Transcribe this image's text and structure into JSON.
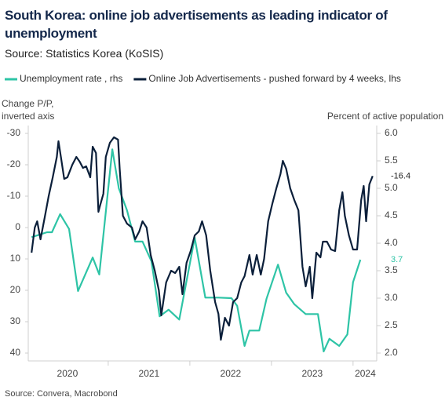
{
  "chart_data": {
    "type": "line",
    "title": "South Korea: online job advertisements as leading indicator of unemployment",
    "subtitle": "Source: Statistics Korea (KoSIS)",
    "ylabel": [
      "Change P/P,",
      "inverted axis"
    ],
    "y2label": "Percent of active population",
    "source": "Source: Convera, Macrobond",
    "xlim": [
      2020.02,
      2024.29
    ],
    "xticks": [
      {
        "value": 2020.5,
        "label": "2020"
      },
      {
        "value": 2021.5,
        "label": "2021"
      },
      {
        "value": 2022.5,
        "label": "2022"
      },
      {
        "value": 2023.5,
        "label": "2023"
      },
      {
        "value": 2024.15,
        "label": "2024"
      }
    ],
    "xtick_marks": [
      2021,
      2022,
      2023,
      2024
    ],
    "ylim": [
      -30,
      40
    ],
    "y_inverted": true,
    "yticks": [
      -30,
      -20,
      -10,
      0,
      10,
      20,
      30,
      40
    ],
    "y2lim": [
      2,
      6
    ],
    "y2ticks": [
      {
        "value": 2,
        "label": "2.0"
      },
      {
        "value": 2.5,
        "label": "2.5"
      },
      {
        "value": 3,
        "label": "3.0"
      },
      {
        "value": 3.5,
        "label": "3.5"
      },
      {
        "value": 4,
        "label": "4.0"
      },
      {
        "value": 4.5,
        "label": "4.5"
      },
      {
        "value": 5,
        "label": "5.0"
      },
      {
        "value": 5.5,
        "label": "5.5"
      },
      {
        "value": 6,
        "label": "6.0"
      }
    ],
    "series": [
      {
        "name": "Unemployment rate , rhs",
        "color": "#2ec4a6",
        "axis": "y2",
        "x": [
          2020.06,
          2020.25,
          2020.31,
          2020.41,
          2020.52,
          2020.63,
          2020.81,
          2020.89,
          2021.05,
          2021.13,
          2021.23,
          2021.33,
          2021.42,
          2021.53,
          2021.63,
          2021.74,
          2021.87,
          2022.06,
          2022.19,
          2022.35,
          2022.51,
          2022.58,
          2022.67,
          2022.73,
          2022.85,
          2022.94,
          2023.08,
          2023.18,
          2023.28,
          2023.42,
          2023.57,
          2023.64,
          2023.71,
          2023.83,
          2023.93,
          2024.0,
          2024.09
        ],
        "values": [
          4.11,
          4.2,
          4.2,
          4.53,
          4.26,
          3.13,
          3.74,
          3.43,
          5.71,
          5.0,
          4.6,
          4.03,
          4.03,
          3.67,
          2.67,
          2.79,
          2.61,
          4.1,
          3.01,
          3.01,
          3.0,
          2.86,
          2.13,
          2.41,
          2.41,
          2.99,
          3.61,
          3.1,
          2.89,
          2.71,
          2.71,
          2.03,
          2.26,
          2.13,
          2.34,
          3.29,
          3.7
        ]
      },
      {
        "name": "Online Job Advertisements - pushed forward by 4 weeks, lhs",
        "color": "#0b1f3a",
        "x": [
          2020.06,
          2020.1,
          2020.13,
          2020.17,
          2020.22,
          2020.27,
          2020.32,
          2020.37,
          2020.39,
          2020.42,
          2020.46,
          2020.5,
          2020.56,
          2020.61,
          2020.65,
          2020.69,
          2020.73,
          2020.78,
          2020.81,
          2020.85,
          2020.88,
          2020.9,
          2020.94,
          2020.97,
          2021.02,
          2021.07,
          2021.12,
          2021.14,
          2021.18,
          2021.23,
          2021.29,
          2021.33,
          2021.38,
          2021.42,
          2021.47,
          2021.52,
          2021.57,
          2021.62,
          2021.65,
          2021.71,
          2021.77,
          2021.82,
          2021.87,
          2021.91,
          2021.96,
          2022.01,
          2022.06,
          2022.11,
          2022.15,
          2022.2,
          2022.25,
          2022.31,
          2022.35,
          2022.38,
          2022.43,
          2022.48,
          2022.53,
          2022.58,
          2022.63,
          2022.67,
          2022.73,
          2022.77,
          2022.82,
          2022.87,
          2022.91,
          2022.96,
          2023.01,
          2023.06,
          2023.11,
          2023.14,
          2023.18,
          2023.23,
          2023.28,
          2023.33,
          2023.38,
          2023.42,
          2023.47,
          2023.5,
          2023.55,
          2023.6,
          2023.63,
          2023.68,
          2023.73,
          2023.78,
          2023.83,
          2023.87,
          2023.9,
          2023.95,
          2024.0,
          2024.05,
          2024.1,
          2024.13,
          2024.16,
          2024.2,
          2024.24
        ],
        "values": [
          8,
          0,
          -2,
          3.75,
          -3,
          -10,
          -16,
          -22.5,
          -27.5,
          -22.5,
          -15.5,
          -16,
          -20,
          -22.5,
          -21,
          -19,
          -19.5,
          -16,
          -25.75,
          -23.75,
          -5,
          -7,
          -10.75,
          -22.5,
          -27,
          -28.75,
          -28,
          -18.75,
          -3.75,
          -1.25,
          0,
          3.75,
          1.25,
          -2,
          0,
          8.75,
          13.75,
          20,
          28,
          17.5,
          13.75,
          14.5,
          12.5,
          21.25,
          11.25,
          7.5,
          2.5,
          1.25,
          -2,
          2.5,
          13.75,
          23.75,
          27.5,
          35.75,
          28.75,
          31.25,
          23.75,
          22.5,
          17.5,
          15.5,
          8.75,
          15,
          8.75,
          15,
          10,
          -2,
          -7.5,
          -12.5,
          -17,
          -21.25,
          -18.75,
          -12.5,
          -8.75,
          -5.5,
          12.5,
          18.75,
          12.5,
          22.5,
          8,
          9.5,
          4.5,
          4.5,
          7,
          7.5,
          -5.5,
          -11.25,
          -3.75,
          2.5,
          7,
          7,
          -8.75,
          -13.25,
          -2,
          -13.75,
          -16.4
        ]
      }
    ]
  }
}
